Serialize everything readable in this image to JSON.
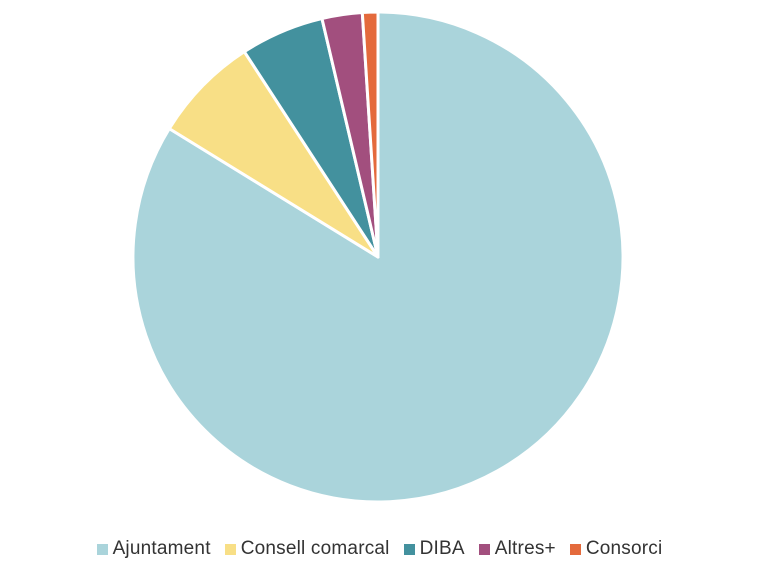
{
  "chart_data": {
    "type": "pie",
    "title": "",
    "start_angle_deg": 0,
    "direction": "clockwise",
    "slices": [
      {
        "label": "Ajuntament",
        "value": 82.1,
        "color": "#aad4db"
      },
      {
        "label": "Consell comarcal",
        "value": 6.9,
        "color": "#f8df86"
      },
      {
        "label": "DIBA",
        "value": 5.4,
        "color": "#43919e"
      },
      {
        "label": "Altres+",
        "value": 2.6,
        "color": "#a24f7e"
      },
      {
        "label": "Consorci",
        "value": 1.0,
        "color": "#e46a3c"
      }
    ],
    "legend_position": "bottom"
  }
}
